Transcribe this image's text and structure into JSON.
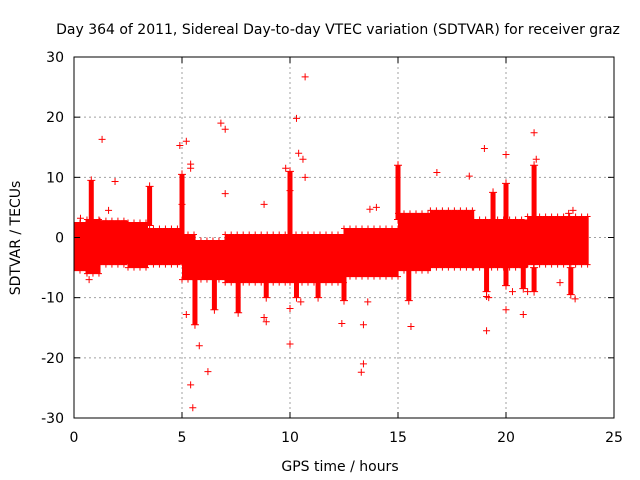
{
  "chart_data": {
    "type": "scatter",
    "title": "Day 364 of 2011, Sidereal Day-to-day VTEC variation (SDTVAR) for receiver graz",
    "xlabel": "GPS time / hours",
    "ylabel": "SDTVAR / TECUs",
    "xlim": [
      0,
      25
    ],
    "ylim": [
      -30,
      30
    ],
    "xticks": [
      0,
      5,
      10,
      15,
      20,
      25
    ],
    "yticks": [
      -30,
      -20,
      -10,
      0,
      10,
      20,
      30
    ],
    "grid": true,
    "marker": "+",
    "color": "#ff0000",
    "band_segments": [
      {
        "x": [
          0.0,
          0.6
        ],
        "low": -5.5,
        "high": 2.5
      },
      {
        "x": [
          0.6,
          1.2
        ],
        "low": -6.0,
        "high": 3.0
      },
      {
        "x": [
          1.2,
          2.5
        ],
        "low": -4.5,
        "high": 2.8
      },
      {
        "x": [
          2.5,
          3.4
        ],
        "low": -5.0,
        "high": 2.5
      },
      {
        "x": [
          3.4,
          5.0
        ],
        "low": -4.5,
        "high": 1.5
      },
      {
        "x": [
          5.0,
          5.6
        ],
        "low": -7.0,
        "high": 0.5
      },
      {
        "x": [
          5.6,
          7.0
        ],
        "low": -7.0,
        "high": -0.5
      },
      {
        "x": [
          7.0,
          10.0
        ],
        "low": -7.5,
        "high": 0.5
      },
      {
        "x": [
          10.0,
          12.5
        ],
        "low": -7.5,
        "high": 0.5
      },
      {
        "x": [
          12.5,
          15.0
        ],
        "low": -6.5,
        "high": 1.5
      },
      {
        "x": [
          15.0,
          16.5
        ],
        "low": -5.5,
        "high": 4.0
      },
      {
        "x": [
          16.5,
          18.5
        ],
        "low": -5.0,
        "high": 4.5
      },
      {
        "x": [
          18.5,
          21.0
        ],
        "low": -5.0,
        "high": 3.0
      },
      {
        "x": [
          21.0,
          23.8
        ],
        "low": -4.5,
        "high": 3.5
      }
    ],
    "spikes": [
      {
        "x": 0.8,
        "low": 2.0,
        "high": 9.5
      },
      {
        "x": 3.5,
        "low": 2.0,
        "high": 8.5
      },
      {
        "x": 5.0,
        "low": -4.0,
        "high": 10.5
      },
      {
        "x": 5.6,
        "low": -14.5,
        "high": -6.0
      },
      {
        "x": 6.5,
        "low": -12.0,
        "high": -6.0
      },
      {
        "x": 7.6,
        "low": -12.5,
        "high": -6.0
      },
      {
        "x": 8.9,
        "low": -10.0,
        "high": -6.0
      },
      {
        "x": 10.0,
        "low": 0.5,
        "high": 11.0
      },
      {
        "x": 10.3,
        "low": -10.0,
        "high": -7.0
      },
      {
        "x": 11.3,
        "low": -10.0,
        "high": -6.5
      },
      {
        "x": 12.5,
        "low": -10.5,
        "high": -6.0
      },
      {
        "x": 15.0,
        "low": 3.0,
        "high": 12.0
      },
      {
        "x": 15.5,
        "low": -10.5,
        "high": -5.0
      },
      {
        "x": 19.1,
        "low": -9.0,
        "high": -5.0
      },
      {
        "x": 19.4,
        "low": 3.0,
        "high": 7.5
      },
      {
        "x": 20.0,
        "low": -8.0,
        "high": -5.0
      },
      {
        "x": 20.0,
        "low": 3.0,
        "high": 9.0
      },
      {
        "x": 20.8,
        "low": -8.5,
        "high": -5.0
      },
      {
        "x": 21.3,
        "low": -9.0,
        "high": -5.0
      },
      {
        "x": 21.3,
        "low": 3.5,
        "high": 12.0
      },
      {
        "x": 23.0,
        "low": -9.5,
        "high": -5.0
      }
    ],
    "outliers": [
      [
        0.3,
        3.2
      ],
      [
        0.7,
        -7.0
      ],
      [
        1.3,
        16.3
      ],
      [
        1.6,
        4.5
      ],
      [
        1.9,
        9.3
      ],
      [
        2.6,
        -3.5
      ],
      [
        4.9,
        15.3
      ],
      [
        5.0,
        5.5
      ],
      [
        5.2,
        16.0
      ],
      [
        5.2,
        -12.8
      ],
      [
        5.4,
        12.2
      ],
      [
        5.4,
        11.5
      ],
      [
        5.5,
        -28.3
      ],
      [
        5.4,
        -24.5
      ],
      [
        5.8,
        -18.0
      ],
      [
        6.2,
        -22.3
      ],
      [
        6.8,
        19.0
      ],
      [
        7.0,
        18.0
      ],
      [
        7.0,
        7.3
      ],
      [
        7.5,
        -2.5
      ],
      [
        8.8,
        5.5
      ],
      [
        8.8,
        -13.3
      ],
      [
        8.9,
        -14.0
      ],
      [
        9.8,
        11.5
      ],
      [
        10.0,
        7.8
      ],
      [
        10.0,
        -17.7
      ],
      [
        10.0,
        -11.8
      ],
      [
        10.3,
        19.8
      ],
      [
        10.4,
        14.0
      ],
      [
        10.5,
        -10.7
      ],
      [
        10.6,
        13.0
      ],
      [
        10.7,
        10.0
      ],
      [
        10.7,
        26.7
      ],
      [
        12.4,
        -14.3
      ],
      [
        13.4,
        -14.5
      ],
      [
        13.4,
        -21.0
      ],
      [
        13.3,
        -22.4
      ],
      [
        13.6,
        -10.7
      ],
      [
        13.7,
        4.7
      ],
      [
        14.0,
        5.0
      ],
      [
        15.6,
        -14.8
      ],
      [
        16.8,
        10.8
      ],
      [
        18.3,
        10.2
      ],
      [
        19.0,
        14.8
      ],
      [
        19.1,
        -15.5
      ],
      [
        19.1,
        -9.8
      ],
      [
        19.2,
        -10.0
      ],
      [
        20.0,
        13.8
      ],
      [
        20.0,
        -12.0
      ],
      [
        20.3,
        -9.0
      ],
      [
        20.8,
        -12.8
      ],
      [
        21.0,
        -9.0
      ],
      [
        21.3,
        17.4
      ],
      [
        21.4,
        13.0
      ],
      [
        22.5,
        -7.5
      ],
      [
        22.9,
        4.0
      ],
      [
        23.2,
        -10.2
      ],
      [
        23.1,
        4.5
      ]
    ]
  }
}
